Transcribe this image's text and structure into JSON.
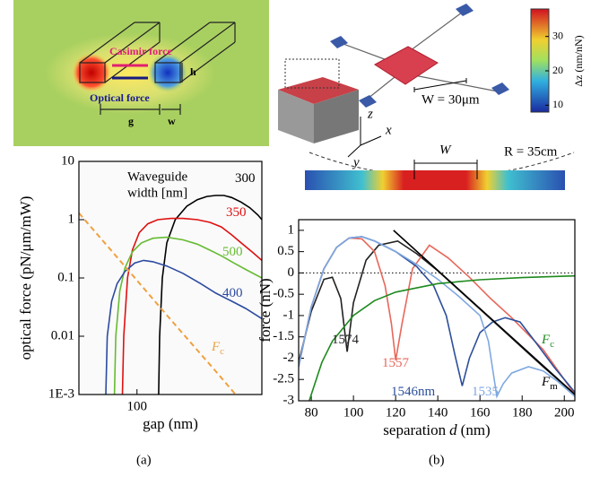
{
  "illustrations": {
    "left": {
      "casimir": "Casimir force",
      "optical": "Optical force",
      "h": "h",
      "g": "g",
      "w": "w"
    },
    "right": {
      "w_label": "W = 30μm",
      "axis_z": "z",
      "axis_x": "x",
      "axis_y": "y",
      "beam_w": "W",
      "radius": "R = 35cm",
      "colorbar": {
        "range": [
          8,
          38
        ],
        "ticks": [
          10,
          20,
          30
        ],
        "label": "Δz (nm/nN)"
      }
    }
  },
  "captions": [
    "(a)",
    "(b)"
  ],
  "chart_data": [
    {
      "type": "line",
      "xlog": true,
      "ylog": true,
      "xlabel": "gap (nm)",
      "ylabel": "optical force (pN/μm/mW)",
      "annotation": [
        "Waveguide",
        "width [nm]"
      ],
      "xlim": [
        60,
        300
      ],
      "xticks": [
        100
      ],
      "ylim": [
        0.001,
        10
      ],
      "yticks": [
        {
          "value": 0.001,
          "label": "1E-3"
        },
        0.01,
        0.1,
        1,
        10
      ],
      "series": [
        {
          "name": "300",
          "color": "#000000",
          "x": [
            121,
            122,
            125,
            130,
            140,
            155,
            170,
            185,
            200,
            215,
            230,
            250,
            270,
            290,
            300
          ],
          "values": [
            0.001,
            0.01,
            0.1,
            0.4,
            1.0,
            1.7,
            2.2,
            2.5,
            2.6,
            2.6,
            2.4,
            2.0,
            1.6,
            1.2,
            1.0
          ]
        },
        {
          "name": "350",
          "color": "#e01010",
          "x": [
            88,
            89,
            92,
            96,
            102,
            110,
            120,
            135,
            150,
            170,
            190,
            210,
            230,
            250,
            275,
            300
          ],
          "values": [
            0.001,
            0.01,
            0.1,
            0.3,
            0.6,
            0.85,
            1.0,
            1.05,
            1.05,
            1.0,
            0.9,
            0.75,
            0.55,
            0.4,
            0.28,
            0.2
          ]
        },
        {
          "name": "500",
          "color": "#66bb33",
          "x": [
            82,
            83,
            86,
            90,
            96,
            104,
            115,
            130,
            150,
            170,
            190,
            210,
            235,
            260,
            300
          ],
          "values": [
            0.001,
            0.01,
            0.06,
            0.15,
            0.28,
            0.4,
            0.48,
            0.5,
            0.45,
            0.38,
            0.3,
            0.24,
            0.18,
            0.14,
            0.1
          ]
        },
        {
          "name": "400",
          "color": "#2c4aa0",
          "x": [
            76,
            77,
            80,
            84,
            90,
            98,
            106,
            115,
            130,
            150,
            175,
            200,
            230,
            260,
            290,
            300
          ],
          "values": [
            0.001,
            0.01,
            0.04,
            0.08,
            0.13,
            0.18,
            0.2,
            0.19,
            0.16,
            0.12,
            0.08,
            0.055,
            0.04,
            0.03,
            0.022,
            0.02
          ]
        },
        {
          "name": "F",
          "name_sub": "c",
          "color": "#f0a040",
          "dashed": true,
          "x": [
            60,
            80,
            100,
            130,
            160,
            200,
            240
          ],
          "values": [
            1.3,
            0.29,
            0.091,
            0.023,
            0.0079,
            0.0025,
            0.00096
          ]
        }
      ]
    },
    {
      "type": "line",
      "xlabel": [
        "separation",
        "d",
        "(nm)"
      ],
      "ylabel": "force (nN)",
      "xlim": [
        74,
        205
      ],
      "xticks": [
        80,
        100,
        120,
        140,
        160,
        180,
        200
      ],
      "ylim": [
        -3,
        1.25
      ],
      "yticks": [
        1,
        0.5,
        0,
        -0.5,
        -1,
        -1.5,
        -2,
        -2.5,
        -3
      ],
      "zero_line": true,
      "series": [
        {
          "name": "1574",
          "color": "#222222",
          "x": [
            74,
            80,
            86,
            90,
            94,
            97,
            100,
            106,
            112,
            121,
            130,
            140,
            150,
            160,
            170,
            180,
            190,
            205
          ],
          "values": [
            -2.1,
            -0.9,
            -0.15,
            -0.1,
            -0.6,
            -1.85,
            -0.7,
            0.3,
            0.65,
            0.75,
            0.45,
            0.05,
            -0.4,
            -0.85,
            -1.3,
            -1.75,
            -2.2,
            -2.85
          ]
        },
        {
          "name": "1557",
          "color": "#e8675a",
          "x": [
            74,
            80,
            86,
            92,
            98,
            104,
            110,
            115,
            118,
            120,
            123,
            128,
            136,
            145,
            155,
            165,
            175,
            190,
            205
          ],
          "values": [
            -2.2,
            -0.8,
            0.1,
            0.6,
            0.82,
            0.8,
            0.5,
            -0.3,
            -1.2,
            -2.05,
            -1.2,
            0.1,
            0.65,
            0.35,
            -0.1,
            -0.6,
            -1.05,
            -1.8,
            -2.85
          ]
        },
        {
          "name": "1546nm",
          "color": "#2e4f9a",
          "x": [
            74,
            80,
            86,
            92,
            98,
            104,
            110,
            120,
            130,
            138,
            144,
            148,
            151.6,
            155,
            160,
            166,
            172,
            179,
            186,
            195,
            205
          ],
          "values": [
            -2.2,
            -0.8,
            0.1,
            0.6,
            0.82,
            0.85,
            0.75,
            0.5,
            0.15,
            -0.3,
            -1.0,
            -1.9,
            -2.65,
            -2.0,
            -1.4,
            -1.15,
            -1.05,
            -1.15,
            -1.6,
            -2.2,
            -2.8
          ]
        },
        {
          "name": "1535",
          "color": "#7fa8e0",
          "x": [
            74,
            80,
            86,
            92,
            98,
            104,
            110,
            120,
            130,
            140,
            150,
            160,
            164,
            168,
            171,
            175,
            183,
            190,
            197,
            205
          ],
          "values": [
            -2.2,
            -0.8,
            0.1,
            0.6,
            0.82,
            0.85,
            0.75,
            0.5,
            0.2,
            -0.15,
            -0.55,
            -1.0,
            -1.6,
            -2.9,
            -2.6,
            -2.35,
            -2.2,
            -2.3,
            -2.55,
            -2.9
          ]
        },
        {
          "name": "F",
          "name_sub": "c",
          "color": "#1e8a1e",
          "x": [
            79,
            85,
            90,
            100,
            110,
            120,
            140,
            160,
            180,
            205
          ],
          "values": [
            -3.0,
            -2.1,
            -1.6,
            -1.0,
            -0.65,
            -0.45,
            -0.25,
            -0.16,
            -0.11,
            -0.07
          ]
        },
        {
          "name": "F",
          "name_sub": "m",
          "color": "#000000",
          "x": [
            119,
            205
          ],
          "values": [
            1.0,
            -2.85
          ]
        }
      ]
    }
  ]
}
